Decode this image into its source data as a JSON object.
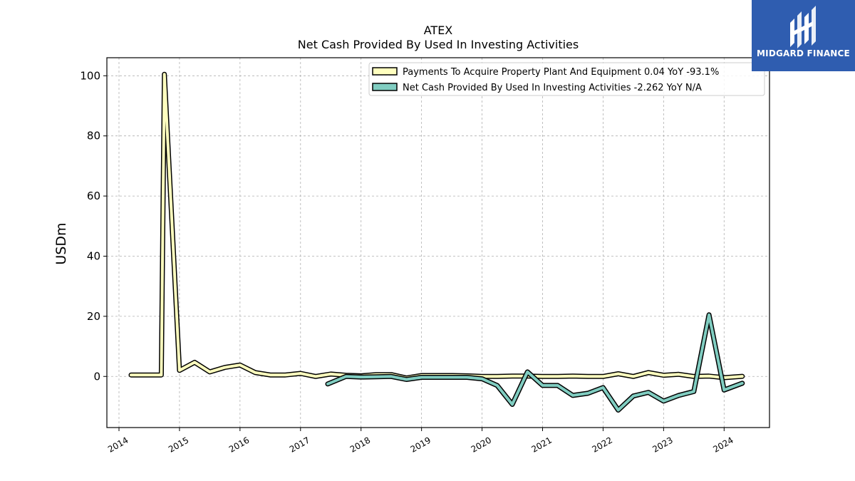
{
  "brand": {
    "name": "MIDGARD FINANCE",
    "icon": "midgard-logo-icon",
    "color": "#2f5db0"
  },
  "chart_data": {
    "type": "line",
    "title": "ATEX",
    "subtitle": "Net Cash Provided By Used In Investing Activities",
    "xlabel": "",
    "ylabel": "USDm",
    "xlim": [
      2013.8,
      2024.75
    ],
    "ylim": [
      -17,
      106
    ],
    "x_ticks": [
      2014,
      2015,
      2016,
      2017,
      2018,
      2019,
      2020,
      2021,
      2022,
      2023,
      2024
    ],
    "y_ticks": [
      0,
      20,
      40,
      60,
      80,
      100
    ],
    "grid": true,
    "legend_position": "top-right",
    "series": [
      {
        "name": "Payments To Acquire Property Plant And Equipment  0.04 YoY -93.1%",
        "color": "#ffffbf",
        "x": [
          2014.2,
          2014.7,
          2014.75,
          2015.0,
          2015.25,
          2015.5,
          2015.75,
          2016.0,
          2016.25,
          2016.5,
          2016.75,
          2017.0,
          2017.25,
          2017.5,
          2017.75,
          2018.0,
          2018.25,
          2018.5,
          2018.75,
          2019.0,
          2019.25,
          2019.5,
          2019.75,
          2020.0,
          2020.25,
          2020.5,
          2020.75,
          2021.0,
          2021.25,
          2021.5,
          2021.75,
          2022.0,
          2022.25,
          2022.5,
          2022.75,
          2023.0,
          2023.25,
          2023.5,
          2023.75,
          2024.0,
          2024.3
        ],
        "y": [
          0.5,
          0.5,
          100.5,
          2.0,
          4.7,
          1.5,
          3.0,
          3.8,
          1.3,
          0.5,
          0.5,
          1.0,
          0.0,
          0.8,
          0.4,
          0.2,
          0.6,
          0.6,
          -0.5,
          0.3,
          0.3,
          0.3,
          0.2,
          0.0,
          0.0,
          0.1,
          0.1,
          0.0,
          0.0,
          0.1,
          0.0,
          0.0,
          0.9,
          0.0,
          1.3,
          0.4,
          0.7,
          0.0,
          0.1,
          -0.4,
          0.04
        ]
      },
      {
        "name": "Net Cash Provided By Used In Investing Activities  -2.262 YoY N/A",
        "color": "#80cdc1",
        "x": [
          2017.45,
          2017.75,
          2018.0,
          2018.25,
          2018.5,
          2018.75,
          2019.0,
          2019.25,
          2019.5,
          2019.75,
          2020.0,
          2020.25,
          2020.5,
          2020.75,
          2021.0,
          2021.25,
          2021.5,
          2021.75,
          2022.0,
          2022.25,
          2022.5,
          2022.75,
          2023.0,
          2023.25,
          2023.5,
          2023.75,
          2024.0,
          2024.3
        ],
        "y": [
          -2.5,
          0.0,
          -0.2,
          -0.1,
          0.0,
          -1.0,
          -0.3,
          -0.3,
          -0.3,
          -0.3,
          -0.8,
          -3.0,
          -9.3,
          1.5,
          -3.0,
          -3.0,
          -6.3,
          -5.6,
          -3.7,
          -11.2,
          -6.5,
          -5.3,
          -8.2,
          -6.3,
          -5.0,
          20.5,
          -4.5,
          -2.262
        ]
      }
    ]
  }
}
